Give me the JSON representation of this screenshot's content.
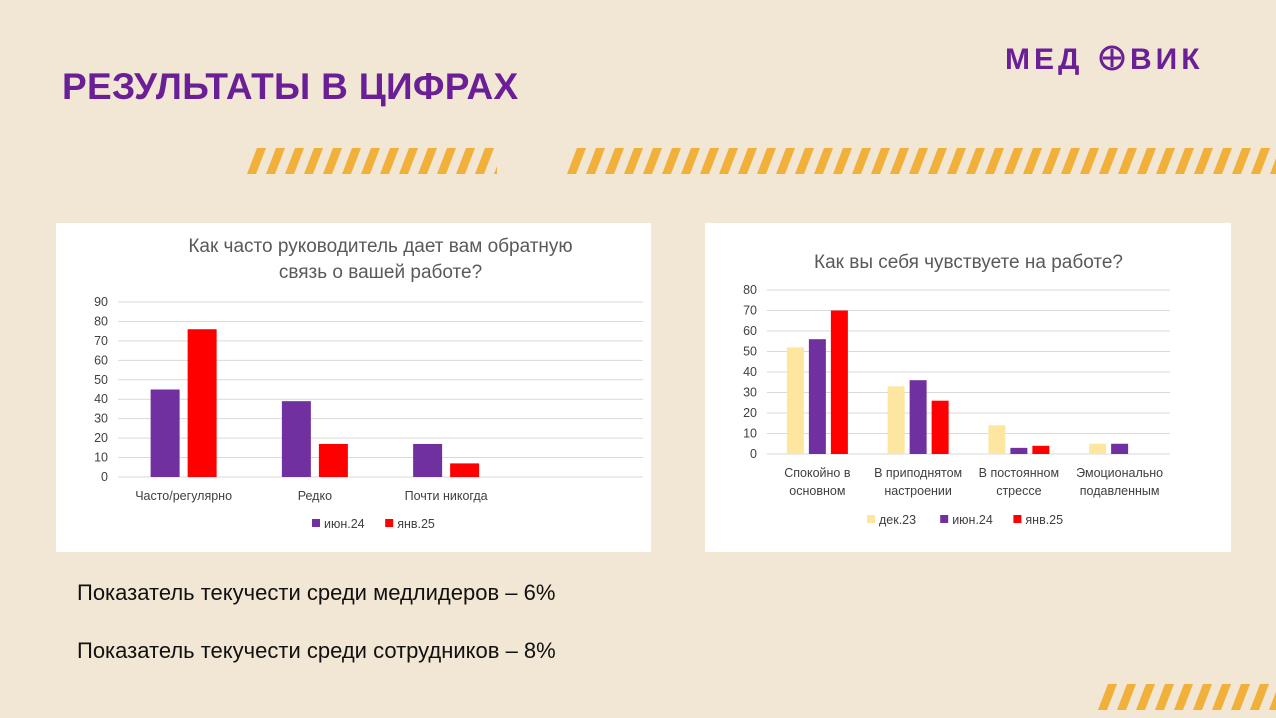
{
  "slide": {
    "title": "РЕЗУЛЬТАТЫ В ЦИФРАХ",
    "logo_text": "МЕД⊕ВИК"
  },
  "colors": {
    "brand": "#6a1f97",
    "background": "#f2e6d4",
    "stripe": "#f0b03a",
    "series_dec23": "#fde6a0",
    "series_jun24": "#7030a0",
    "series_jan25": "#ff0000"
  },
  "notes": [
    "Показатель текучести среди медлидеров – 6%",
    "Показатель текучести среди сотрудников – 8%"
  ],
  "chart_data": [
    {
      "type": "bar",
      "title": "Как часто руководитель дает вам обратную связь о вашей работе?",
      "title_lines": [
        "Как часто руководитель дает вам обратную",
        "связь о вашей работе?"
      ],
      "categories": [
        "Часто/регулярно",
        "Редко",
        "Почти никогда"
      ],
      "series": [
        {
          "name": "июн.24",
          "color": "#7030a0",
          "values": [
            45,
            39,
            17
          ]
        },
        {
          "name": "янв.25",
          "color": "#ff0000",
          "values": [
            76,
            17,
            7
          ]
        }
      ],
      "ylim": [
        0,
        90
      ],
      "yticks": [
        0,
        10,
        20,
        30,
        40,
        50,
        60,
        70,
        80,
        90
      ],
      "grid": true,
      "legend": "bottom"
    },
    {
      "type": "bar",
      "title": "Как вы себя чувствуете на работе?",
      "title_lines": [
        "Как вы себя чувствуете на работе?"
      ],
      "categories": [
        "Спокойно в основном",
        "В приподнятом настроении",
        "В постоянном стрессе",
        "Эмоционально подавленным"
      ],
      "category_lines": [
        [
          "Спокойно в",
          "основном"
        ],
        [
          "В приподнятом",
          "настроении"
        ],
        [
          "В постоянном",
          "стрессе"
        ],
        [
          "Эмоционально",
          "подавленным"
        ]
      ],
      "series": [
        {
          "name": "дек.23",
          "color": "#fde6a0",
          "values": [
            52,
            33,
            14,
            5
          ]
        },
        {
          "name": "июн.24",
          "color": "#7030a0",
          "values": [
            56,
            36,
            3,
            5
          ]
        },
        {
          "name": "янв.25",
          "color": "#ff0000",
          "values": [
            70,
            26,
            4,
            0
          ]
        }
      ],
      "ylim": [
        0,
        80
      ],
      "yticks": [
        0,
        10,
        20,
        30,
        40,
        50,
        60,
        70,
        80
      ],
      "grid": true,
      "legend": "bottom"
    }
  ]
}
